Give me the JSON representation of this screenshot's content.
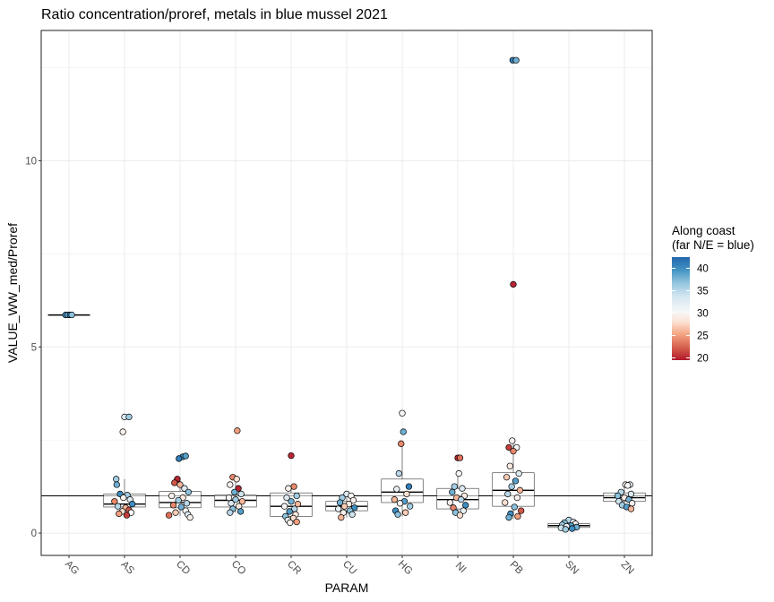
{
  "chart_data": {
    "type": "boxplot+jitter",
    "title": "Ratio concentration/proref, metals in blue mussel 2021",
    "xlabel": "PARAM",
    "ylabel": "VALUE_WW_med/Proref",
    "categories": [
      "AG",
      "AS",
      "CD",
      "CO",
      "CR",
      "CU",
      "HG",
      "NI",
      "PB",
      "SN",
      "ZN"
    ],
    "ylim": [
      -0.6,
      13.5
    ],
    "yticks": [
      0,
      5,
      10
    ],
    "ytick_labels": [
      "0",
      "5",
      "10"
    ],
    "reference_line": 1,
    "grid": true,
    "legend": {
      "title_line1": "Along coast",
      "title_line2": "(far N/E = blue)",
      "placement": "right",
      "range": [
        19.5,
        42.5
      ],
      "ticks": [
        20,
        25,
        30,
        35,
        40
      ],
      "tick_labels": [
        "20",
        "25",
        "30",
        "35",
        "40"
      ],
      "colors_low_to_high": [
        "#b2182b",
        "#d6604d",
        "#f4a582",
        "#fbe3d6",
        "#f7f7f7",
        "#d1e5f0",
        "#92c5de",
        "#4393c3",
        "#2166ac"
      ]
    },
    "boxes": [
      {
        "param": "AG",
        "q1": 5.86,
        "median": 5.86,
        "q3": 5.86,
        "whisker_low": 5.86,
        "whisker_high": 5.86
      },
      {
        "param": "AS",
        "q1": 0.7,
        "median": 0.78,
        "q3": 1.05,
        "whisker_low": 0.45,
        "whisker_high": 1.45
      },
      {
        "param": "CD",
        "q1": 0.68,
        "median": 0.82,
        "q3": 1.12,
        "whisker_low": 0.45,
        "whisker_high": 1.5
      },
      {
        "param": "CO",
        "q1": 0.7,
        "median": 0.88,
        "q3": 1.02,
        "whisker_low": 0.55,
        "whisker_high": 1.5
      },
      {
        "param": "CR",
        "q1": 0.45,
        "median": 0.72,
        "q3": 1.08,
        "whisker_low": 0.27,
        "whisker_high": 1.25
      },
      {
        "param": "CU",
        "q1": 0.6,
        "median": 0.72,
        "q3": 0.85,
        "whisker_low": 0.42,
        "whisker_high": 1.05
      },
      {
        "param": "HG",
        "q1": 0.82,
        "median": 1.1,
        "q3": 1.45,
        "whisker_low": 0.45,
        "whisker_high": 2.4
      },
      {
        "param": "NI",
        "q1": 0.65,
        "median": 0.9,
        "q3": 1.2,
        "whisker_low": 0.45,
        "whisker_high": 1.6
      },
      {
        "param": "PB",
        "q1": 0.72,
        "median": 1.15,
        "q3": 1.62,
        "whisker_low": 0.38,
        "whisker_high": 2.45
      },
      {
        "param": "SN",
        "q1": 0.15,
        "median": 0.2,
        "q3": 0.25,
        "whisker_low": 0.1,
        "whisker_high": 0.35
      },
      {
        "param": "ZN",
        "q1": 0.85,
        "median": 0.95,
        "q3": 1.08,
        "whisker_low": 0.65,
        "whisker_high": 1.3
      }
    ],
    "points": [
      {
        "param": "AG",
        "jitter": -0.06,
        "value": 5.86,
        "coast": 40
      },
      {
        "param": "AG",
        "jitter": -0.02,
        "value": 5.86,
        "coast": 38
      },
      {
        "param": "AG",
        "jitter": 0.02,
        "value": 5.86,
        "coast": 41
      },
      {
        "param": "AG",
        "jitter": 0.05,
        "value": 5.86,
        "coast": 37
      },
      {
        "param": "AS",
        "jitter": 0.0,
        "value": 3.12,
        "coast": 33
      },
      {
        "param": "AS",
        "jitter": 0.08,
        "value": 3.12,
        "coast": 36
      },
      {
        "param": "AS",
        "jitter": -0.03,
        "value": 2.72,
        "coast": 30
      },
      {
        "param": "AS",
        "jitter": -0.15,
        "value": 1.45,
        "coast": 36
      },
      {
        "param": "AS",
        "jitter": -0.14,
        "value": 1.3,
        "coast": 38
      },
      {
        "param": "AS",
        "jitter": -0.08,
        "value": 1.05,
        "coast": 40
      },
      {
        "param": "AS",
        "jitter": 0.05,
        "value": 1.02,
        "coast": 36
      },
      {
        "param": "AS",
        "jitter": -0.02,
        "value": 0.95,
        "coast": 30
      },
      {
        "param": "AS",
        "jitter": 0.1,
        "value": 0.9,
        "coast": 33
      },
      {
        "param": "AS",
        "jitter": -0.18,
        "value": 0.85,
        "coast": 24
      },
      {
        "param": "AS",
        "jitter": 0.14,
        "value": 0.78,
        "coast": 40
      },
      {
        "param": "AS",
        "jitter": -0.12,
        "value": 0.72,
        "coast": 35
      },
      {
        "param": "AS",
        "jitter": 0.02,
        "value": 0.68,
        "coast": 26
      },
      {
        "param": "AS",
        "jitter": 0.08,
        "value": 0.62,
        "coast": 22
      },
      {
        "param": "AS",
        "jitter": -0.04,
        "value": 0.58,
        "coast": 28
      },
      {
        "param": "AS",
        "jitter": 0.12,
        "value": 0.55,
        "coast": 31
      },
      {
        "param": "AS",
        "jitter": -0.1,
        "value": 0.52,
        "coast": 25
      },
      {
        "param": "AS",
        "jitter": 0.04,
        "value": 0.48,
        "coast": 21
      },
      {
        "param": "CD",
        "jitter": 0.05,
        "value": 2.05,
        "coast": 40
      },
      {
        "param": "CD",
        "jitter": -0.02,
        "value": 2.0,
        "coast": 41
      },
      {
        "param": "CD",
        "jitter": 0.1,
        "value": 2.07,
        "coast": 39
      },
      {
        "param": "CD",
        "jitter": -0.05,
        "value": 1.45,
        "coast": 20
      },
      {
        "param": "CD",
        "jitter": -0.1,
        "value": 1.35,
        "coast": 22
      },
      {
        "param": "CD",
        "jitter": 0.0,
        "value": 1.3,
        "coast": 26
      },
      {
        "param": "CD",
        "jitter": 0.08,
        "value": 1.2,
        "coast": 33
      },
      {
        "param": "CD",
        "jitter": 0.15,
        "value": 1.1,
        "coast": 37
      },
      {
        "param": "CD",
        "jitter": -0.15,
        "value": 1.0,
        "coast": 30
      },
      {
        "param": "CD",
        "jitter": 0.05,
        "value": 0.95,
        "coast": 29
      },
      {
        "param": "CD",
        "jitter": -0.03,
        "value": 0.88,
        "coast": 36
      },
      {
        "param": "CD",
        "jitter": 0.12,
        "value": 0.8,
        "coast": 35
      },
      {
        "param": "CD",
        "jitter": -0.12,
        "value": 0.75,
        "coast": 24
      },
      {
        "param": "CD",
        "jitter": 0.02,
        "value": 0.7,
        "coast": 38
      },
      {
        "param": "CD",
        "jitter": 0.1,
        "value": 0.6,
        "coast": 31
      },
      {
        "param": "CD",
        "jitter": -0.08,
        "value": 0.55,
        "coast": 27
      },
      {
        "param": "CD",
        "jitter": 0.14,
        "value": 0.5,
        "coast": 33
      },
      {
        "param": "CD",
        "jitter": -0.2,
        "value": 0.48,
        "coast": 23
      },
      {
        "param": "CD",
        "jitter": 0.18,
        "value": 0.42,
        "coast": 30
      },
      {
        "param": "CO",
        "jitter": 0.03,
        "value": 2.75,
        "coast": 25
      },
      {
        "param": "CO",
        "jitter": -0.05,
        "value": 1.5,
        "coast": 24
      },
      {
        "param": "CO",
        "jitter": 0.02,
        "value": 1.45,
        "coast": 28
      },
      {
        "param": "CO",
        "jitter": -0.1,
        "value": 1.3,
        "coast": 30
      },
      {
        "param": "CO",
        "jitter": 0.05,
        "value": 1.2,
        "coast": 20
      },
      {
        "param": "CO",
        "jitter": -0.02,
        "value": 1.1,
        "coast": 38
      },
      {
        "param": "CO",
        "jitter": 0.1,
        "value": 1.05,
        "coast": 34
      },
      {
        "param": "CO",
        "jitter": -0.12,
        "value": 0.95,
        "coast": 31
      },
      {
        "param": "CO",
        "jitter": 0.0,
        "value": 0.9,
        "coast": 36
      },
      {
        "param": "CO",
        "jitter": 0.12,
        "value": 0.85,
        "coast": 26
      },
      {
        "param": "CO",
        "jitter": -0.08,
        "value": 0.8,
        "coast": 33
      },
      {
        "param": "CO",
        "jitter": 0.06,
        "value": 0.72,
        "coast": 29
      },
      {
        "param": "CO",
        "jitter": -0.05,
        "value": 0.65,
        "coast": 37
      },
      {
        "param": "CO",
        "jitter": 0.09,
        "value": 0.58,
        "coast": 39
      },
      {
        "param": "CO",
        "jitter": -0.1,
        "value": 0.55,
        "coast": 35
      },
      {
        "param": "CR",
        "jitter": 0.0,
        "value": 2.08,
        "coast": 20
      },
      {
        "param": "CR",
        "jitter": 0.05,
        "value": 1.25,
        "coast": 24
      },
      {
        "param": "CR",
        "jitter": -0.05,
        "value": 1.2,
        "coast": 30
      },
      {
        "param": "CR",
        "jitter": 0.1,
        "value": 1.0,
        "coast": 36
      },
      {
        "param": "CR",
        "jitter": -0.08,
        "value": 0.95,
        "coast": 33
      },
      {
        "param": "CR",
        "jitter": 0.0,
        "value": 0.85,
        "coast": 38
      },
      {
        "param": "CR",
        "jitter": 0.12,
        "value": 0.78,
        "coast": 26
      },
      {
        "param": "CR",
        "jitter": -0.12,
        "value": 0.72,
        "coast": 31
      },
      {
        "param": "CR",
        "jitter": 0.06,
        "value": 0.65,
        "coast": 35
      },
      {
        "param": "CR",
        "jitter": -0.03,
        "value": 0.58,
        "coast": 39
      },
      {
        "param": "CR",
        "jitter": 0.08,
        "value": 0.5,
        "coast": 29
      },
      {
        "param": "CR",
        "jitter": -0.1,
        "value": 0.45,
        "coast": 37
      },
      {
        "param": "CR",
        "jitter": 0.04,
        "value": 0.4,
        "coast": 28
      },
      {
        "param": "CR",
        "jitter": -0.06,
        "value": 0.35,
        "coast": 32
      },
      {
        "param": "CR",
        "jitter": 0.1,
        "value": 0.3,
        "coast": 25
      },
      {
        "param": "CR",
        "jitter": -0.02,
        "value": 0.28,
        "coast": 30
      },
      {
        "param": "CU",
        "jitter": 0.0,
        "value": 1.05,
        "coast": 33
      },
      {
        "param": "CU",
        "jitter": 0.08,
        "value": 1.0,
        "coast": 31
      },
      {
        "param": "CU",
        "jitter": -0.08,
        "value": 0.95,
        "coast": 36
      },
      {
        "param": "CU",
        "jitter": 0.12,
        "value": 0.88,
        "coast": 30
      },
      {
        "param": "CU",
        "jitter": -0.12,
        "value": 0.82,
        "coast": 38
      },
      {
        "param": "CU",
        "jitter": 0.04,
        "value": 0.78,
        "coast": 29
      },
      {
        "param": "CU",
        "jitter": -0.04,
        "value": 0.72,
        "coast": 27
      },
      {
        "param": "CU",
        "jitter": 0.14,
        "value": 0.68,
        "coast": 40
      },
      {
        "param": "CU",
        "jitter": -0.15,
        "value": 0.65,
        "coast": 32
      },
      {
        "param": "CU",
        "jitter": 0.06,
        "value": 0.6,
        "coast": 37
      },
      {
        "param": "CU",
        "jitter": -0.06,
        "value": 0.55,
        "coast": 30
      },
      {
        "param": "CU",
        "jitter": 0.1,
        "value": 0.5,
        "coast": 34
      },
      {
        "param": "CU",
        "jitter": -0.1,
        "value": 0.42,
        "coast": 26
      },
      {
        "param": "HG",
        "jitter": 0.0,
        "value": 3.22,
        "coast": 31
      },
      {
        "param": "HG",
        "jitter": 0.02,
        "value": 2.72,
        "coast": 38
      },
      {
        "param": "HG",
        "jitter": -0.02,
        "value": 2.4,
        "coast": 24
      },
      {
        "param": "HG",
        "jitter": -0.06,
        "value": 1.6,
        "coast": 35
      },
      {
        "param": "HG",
        "jitter": 0.12,
        "value": 1.25,
        "coast": 41
      },
      {
        "param": "HG",
        "jitter": -0.1,
        "value": 1.18,
        "coast": 32
      },
      {
        "param": "HG",
        "jitter": 0.08,
        "value": 1.05,
        "coast": 28
      },
      {
        "param": "HG",
        "jitter": -0.14,
        "value": 0.9,
        "coast": 26
      },
      {
        "param": "HG",
        "jitter": 0.04,
        "value": 0.85,
        "coast": 39
      },
      {
        "param": "HG",
        "jitter": -0.04,
        "value": 0.8,
        "coast": 30
      },
      {
        "param": "HG",
        "jitter": 0.14,
        "value": 0.72,
        "coast": 36
      },
      {
        "param": "HG",
        "jitter": -0.12,
        "value": 0.6,
        "coast": 40
      },
      {
        "param": "HG",
        "jitter": 0.06,
        "value": 0.55,
        "coast": 27
      },
      {
        "param": "HG",
        "jitter": -0.08,
        "value": 0.5,
        "coast": 37
      },
      {
        "param": "NI",
        "jitter": 0.0,
        "value": 2.02,
        "coast": 20
      },
      {
        "param": "NI",
        "jitter": 0.04,
        "value": 2.02,
        "coast": 23
      },
      {
        "param": "NI",
        "jitter": 0.02,
        "value": 1.6,
        "coast": 31
      },
      {
        "param": "NI",
        "jitter": -0.06,
        "value": 1.25,
        "coast": 36
      },
      {
        "param": "NI",
        "jitter": 0.08,
        "value": 1.2,
        "coast": 33
      },
      {
        "param": "NI",
        "jitter": -0.1,
        "value": 1.1,
        "coast": 38
      },
      {
        "param": "NI",
        "jitter": 0.12,
        "value": 1.0,
        "coast": 29
      },
      {
        "param": "NI",
        "jitter": -0.02,
        "value": 0.95,
        "coast": 26
      },
      {
        "param": "NI",
        "jitter": 0.06,
        "value": 0.9,
        "coast": 35
      },
      {
        "param": "NI",
        "jitter": -0.14,
        "value": 0.82,
        "coast": 30
      },
      {
        "param": "NI",
        "jitter": 0.14,
        "value": 0.75,
        "coast": 40
      },
      {
        "param": "NI",
        "jitter": -0.08,
        "value": 0.68,
        "coast": 24
      },
      {
        "param": "NI",
        "jitter": 0.1,
        "value": 0.6,
        "coast": 32
      },
      {
        "param": "NI",
        "jitter": -0.04,
        "value": 0.55,
        "coast": 37
      },
      {
        "param": "NI",
        "jitter": 0.04,
        "value": 0.48,
        "coast": 28
      },
      {
        "param": "PB",
        "jitter": -0.01,
        "value": 12.7,
        "coast": 41
      },
      {
        "param": "PB",
        "jitter": 0.05,
        "value": 12.7,
        "coast": 38
      },
      {
        "param": "PB",
        "jitter": 0.0,
        "value": 6.68,
        "coast": 20
      },
      {
        "param": "PB",
        "jitter": -0.02,
        "value": 2.48,
        "coast": 30
      },
      {
        "param": "PB",
        "jitter": -0.08,
        "value": 2.3,
        "coast": 21
      },
      {
        "param": "PB",
        "jitter": 0.06,
        "value": 2.3,
        "coast": 31
      },
      {
        "param": "PB",
        "jitter": 0.0,
        "value": 2.2,
        "coast": 24
      },
      {
        "param": "PB",
        "jitter": -0.06,
        "value": 1.8,
        "coast": 29
      },
      {
        "param": "PB",
        "jitter": 0.1,
        "value": 1.6,
        "coast": 33
      },
      {
        "param": "PB",
        "jitter": -0.12,
        "value": 1.5,
        "coast": 27
      },
      {
        "param": "PB",
        "jitter": 0.04,
        "value": 1.4,
        "coast": 39
      },
      {
        "param": "PB",
        "jitter": -0.03,
        "value": 1.25,
        "coast": 36
      },
      {
        "param": "PB",
        "jitter": 0.12,
        "value": 1.15,
        "coast": 26
      },
      {
        "param": "PB",
        "jitter": -0.1,
        "value": 1.05,
        "coast": 35
      },
      {
        "param": "PB",
        "jitter": 0.07,
        "value": 0.95,
        "coast": 30
      },
      {
        "param": "PB",
        "jitter": -0.15,
        "value": 0.82,
        "coast": 28
      },
      {
        "param": "PB",
        "jitter": 0.02,
        "value": 0.7,
        "coast": 37
      },
      {
        "param": "PB",
        "jitter": 0.14,
        "value": 0.6,
        "coast": 22
      },
      {
        "param": "PB",
        "jitter": -0.05,
        "value": 0.52,
        "coast": 40
      },
      {
        "param": "PB",
        "jitter": 0.08,
        "value": 0.45,
        "coast": 25
      },
      {
        "param": "PB",
        "jitter": -0.08,
        "value": 0.42,
        "coast": 38
      },
      {
        "param": "SN",
        "jitter": 0.0,
        "value": 0.35,
        "coast": 35
      },
      {
        "param": "SN",
        "jitter": 0.08,
        "value": 0.3,
        "coast": 33
      },
      {
        "param": "SN",
        "jitter": -0.08,
        "value": 0.28,
        "coast": 37
      },
      {
        "param": "SN",
        "jitter": 0.12,
        "value": 0.25,
        "coast": 30
      },
      {
        "param": "SN",
        "jitter": -0.12,
        "value": 0.22,
        "coast": 36
      },
      {
        "param": "SN",
        "jitter": 0.04,
        "value": 0.2,
        "coast": 39
      },
      {
        "param": "SN",
        "jitter": -0.04,
        "value": 0.18,
        "coast": 32
      },
      {
        "param": "SN",
        "jitter": 0.14,
        "value": 0.16,
        "coast": 38
      },
      {
        "param": "SN",
        "jitter": -0.14,
        "value": 0.14,
        "coast": 34
      },
      {
        "param": "SN",
        "jitter": 0.06,
        "value": 0.12,
        "coast": 40
      },
      {
        "param": "SN",
        "jitter": -0.06,
        "value": 0.1,
        "coast": 36
      },
      {
        "param": "ZN",
        "jitter": 0.02,
        "value": 1.3,
        "coast": 30
      },
      {
        "param": "ZN",
        "jitter": 0.1,
        "value": 1.3,
        "coast": 32
      },
      {
        "param": "ZN",
        "jitter": 0.06,
        "value": 1.28,
        "coast": 31
      },
      {
        "param": "ZN",
        "jitter": -0.06,
        "value": 1.1,
        "coast": 35
      },
      {
        "param": "ZN",
        "jitter": 0.12,
        "value": 1.05,
        "coast": 33
      },
      {
        "param": "ZN",
        "jitter": -0.12,
        "value": 1.0,
        "coast": 37
      },
      {
        "param": "ZN",
        "jitter": 0.0,
        "value": 0.95,
        "coast": 29
      },
      {
        "param": "ZN",
        "jitter": 0.08,
        "value": 0.9,
        "coast": 38
      },
      {
        "param": "ZN",
        "jitter": -0.1,
        "value": 0.85,
        "coast": 34
      },
      {
        "param": "ZN",
        "jitter": 0.14,
        "value": 0.8,
        "coast": 30
      },
      {
        "param": "ZN",
        "jitter": -0.04,
        "value": 0.75,
        "coast": 36
      },
      {
        "param": "ZN",
        "jitter": 0.04,
        "value": 0.7,
        "coast": 39
      },
      {
        "param": "ZN",
        "jitter": 0.12,
        "value": 0.65,
        "coast": 26
      }
    ]
  }
}
